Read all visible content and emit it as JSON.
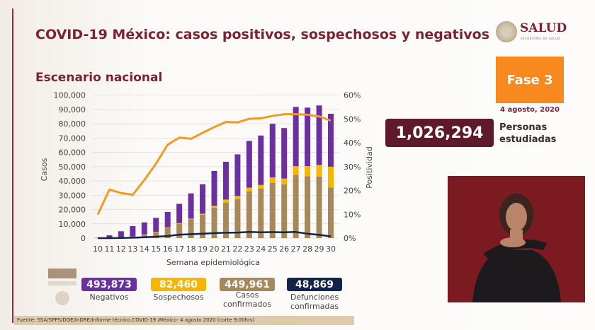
{
  "header": {
    "title": "COVID-19 México: casos positivos, sospechosos y negativos",
    "subtitle": "Escenario nacional",
    "logo_text": "SALUD",
    "logo_subtext": "SECRETARÍA DE SALUD"
  },
  "phase": {
    "label": "Fase 3",
    "date": "4 agosto, 2020",
    "color": "#f7891f"
  },
  "studied": {
    "value": "1,026,294",
    "label_line1": "Personas",
    "label_line2": "estudiadas"
  },
  "stats": [
    {
      "value": "493,873",
      "label": "Negativos",
      "label2": "",
      "color": "#6b2fa0"
    },
    {
      "value": "82,460",
      "label": "Sospechosos",
      "label2": "",
      "color": "#f7b500"
    },
    {
      "value": "449,961",
      "label": "Casos",
      "label2": "confirmados",
      "color": "#a6885a"
    },
    {
      "value": "48,869",
      "label": "Defunciones",
      "label2": "confirmadas",
      "color": "#13234a"
    }
  ],
  "footer": "Fuente: SSA/SPPS/DGE/InDRE/Informe técnico.COVID-19 /México- 4 agosto 2020 (corte 9:00hrs)",
  "chart_data": {
    "type": "bar",
    "stacked": true,
    "xlabel": "Semana epidemiológica",
    "ylabel": "Casos",
    "y2label": "Positividad",
    "ylim": [
      0,
      100000
    ],
    "y2lim": [
      0,
      60
    ],
    "yticks": [
      "0",
      "10,000",
      "20,000",
      "30,000",
      "40,000",
      "50,000",
      "60,000",
      "70,000",
      "80,000",
      "90,000",
      "100,000"
    ],
    "y2ticks": [
      "0%",
      "10%",
      "20%",
      "30%",
      "40%",
      "50%",
      "60%"
    ],
    "grid": true,
    "categories": [
      "10",
      "11",
      "12",
      "13",
      "14",
      "15",
      "16",
      "17",
      "18",
      "19",
      "20",
      "21",
      "22",
      "23",
      "24",
      "25",
      "26",
      "27",
      "28",
      "29",
      "30"
    ],
    "series": [
      {
        "key": "confirmados",
        "color": "#a6885a",
        "values": [
          100,
          300,
          500,
          1000,
          2500,
          4100,
          7400,
          10000,
          13300,
          16300,
          21300,
          24900,
          27200,
          32800,
          34600,
          38700,
          37700,
          44000,
          43300,
          43000,
          35400
        ]
      },
      {
        "key": "sospechosos",
        "color": "#f7b500",
        "values": [
          0,
          0,
          0,
          100,
          200,
          300,
          300,
          500,
          400,
          800,
          1400,
          2100,
          2300,
          2500,
          2600,
          3800,
          4000,
          6400,
          7100,
          8200,
          14600
        ]
      },
      {
        "key": "negativos",
        "color": "#6b2fa0",
        "values": [
          200,
          1700,
          4300,
          7300,
          8300,
          9800,
          10600,
          13500,
          17600,
          20600,
          24300,
          26400,
          29100,
          32700,
          34600,
          37500,
          35300,
          41400,
          40900,
          41600,
          37000
        ]
      }
    ],
    "lines": [
      {
        "key": "positividad",
        "axis": "right",
        "color": "#f39a21",
        "values": [
          9.9,
          20.4,
          18.9,
          18.2,
          24.4,
          31.3,
          39.2,
          42.2,
          41.7,
          44.2,
          46.6,
          48.8,
          48.6,
          50.1,
          50.3,
          51.3,
          52.0,
          52.0,
          51.8,
          51.1,
          49.3
        ]
      },
      {
        "key": "defunciones",
        "axis": "left",
        "color": "#13234a",
        "values": [
          0,
          0,
          100,
          300,
          600,
          1000,
          1500,
          2400,
          2800,
          3100,
          3500,
          3800,
          3900,
          4300,
          4100,
          4200,
          4100,
          4300,
          3100,
          2300,
          1300
        ]
      }
    ]
  }
}
